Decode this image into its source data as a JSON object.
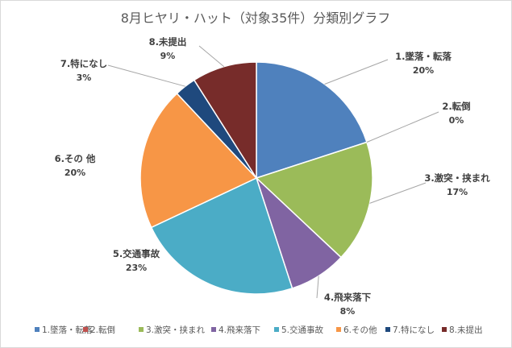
{
  "chart_data": {
    "type": "pie",
    "title": "8月ヒヤリ・ハット（対象35件）分類別グラフ",
    "legend_position": "bottom",
    "slices": [
      {
        "legend": "1.墜落・転落",
        "label": "1.墜落・転落",
        "value": 20,
        "pct_label": "20%",
        "color": "#4f81bd"
      },
      {
        "legend": "2.転倒",
        "label": "2.転倒",
        "value": 0,
        "pct_label": "0%",
        "color": "#c0504d"
      },
      {
        "legend": "3.激突・挟まれ",
        "label": "3.激突・挟まれ",
        "value": 17,
        "pct_label": "17%",
        "color": "#9bbb59"
      },
      {
        "legend": "4.飛来落下",
        "label": "4.飛来落下",
        "value": 8,
        "pct_label": "8%",
        "color": "#8064a2"
      },
      {
        "legend": "5.交通事故",
        "label": "5.交通事故",
        "value": 23,
        "pct_label": "23%",
        "color": "#4bacc6"
      },
      {
        "legend": "6.その他",
        "label": "6.その 他",
        "value": 20,
        "pct_label": "20%",
        "color": "#f79646"
      },
      {
        "legend": "7.特になし",
        "label": "7.特になし",
        "value": 3,
        "pct_label": "3%",
        "color": "#1f497d"
      },
      {
        "legend": "8.未提出",
        "label": "8.未提出",
        "value": 9,
        "pct_label": "9%",
        "color": "#772c2a"
      }
    ]
  }
}
